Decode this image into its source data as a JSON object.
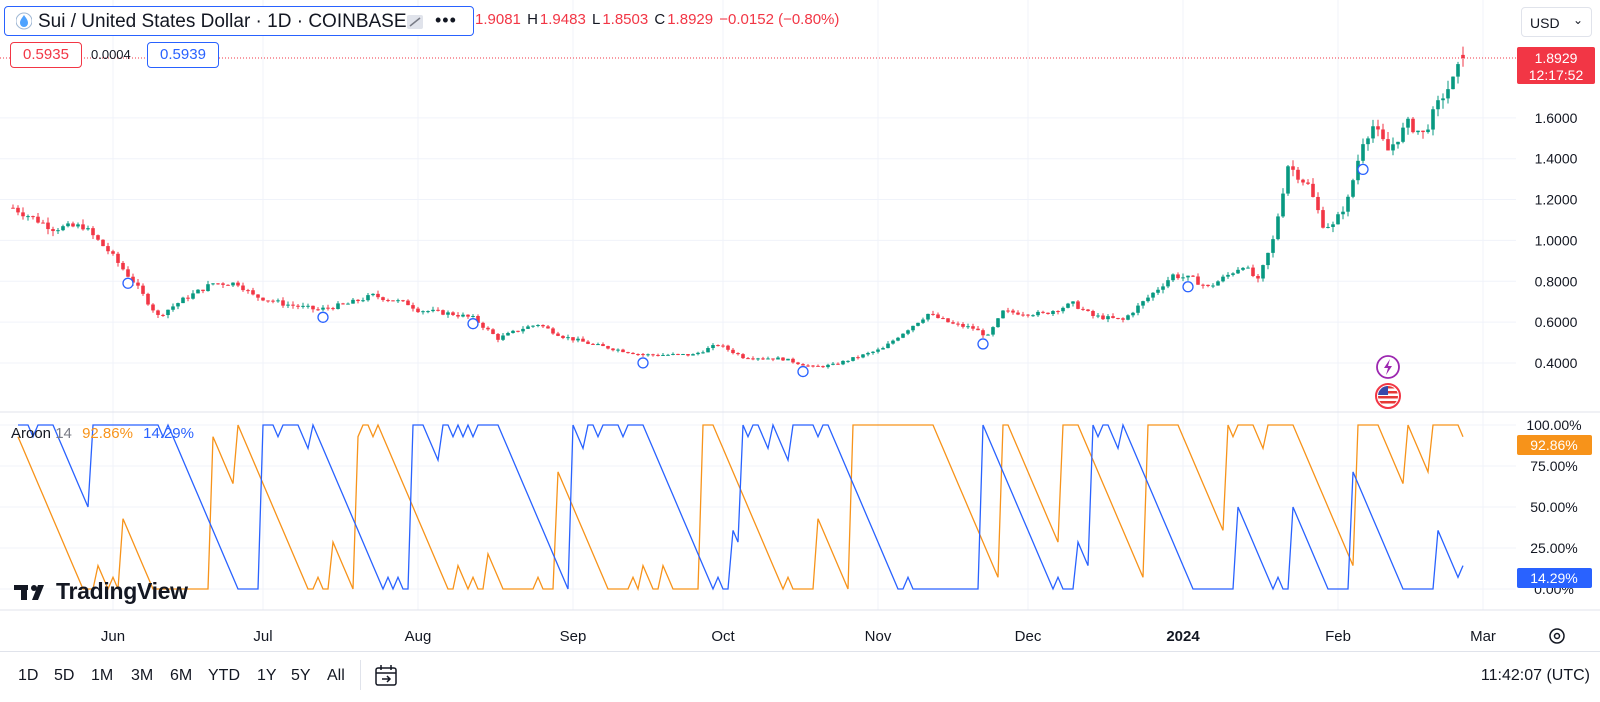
{
  "header": {
    "symbol_title": "Sui / United States Dollar · 1D · COINBASE",
    "symbol_icon": "sui-droplet-icon",
    "more_icon": "more-dots-icon",
    "ohlc": {
      "o_value": "1.9081",
      "h_label": "H",
      "h_value": "1.9483",
      "l_label": "L",
      "l_value": "1.8503",
      "c_label": "C",
      "c_value": "1.8929",
      "change": "−0.0152 (−0.80%)"
    },
    "bid": "0.5935",
    "spread": "0.0004",
    "ask": "0.5939",
    "currency": "USD"
  },
  "price_axis": {
    "ticks": [
      "1.6000",
      "1.4000",
      "1.2000",
      "1.0000",
      "0.8000",
      "0.6000",
      "0.4000"
    ],
    "last_price": "1.8929",
    "countdown": "12:17:52"
  },
  "indicator": {
    "name": "Aroon",
    "length": "14",
    "up_value": "92.86%",
    "down_value": "14.29%",
    "ticks": [
      "100.00%",
      "75.00%",
      "50.00%",
      "25.00%",
      "0.00%"
    ],
    "up_color": "#f7931a",
    "down_color": "#2962ff"
  },
  "time_axis": {
    "labels": [
      "Jun",
      "Jul",
      "Aug",
      "Sep",
      "Oct",
      "Nov",
      "Dec",
      "2024",
      "Feb",
      "Mar"
    ],
    "settings_icon": "gear-icon"
  },
  "bottom_bar": {
    "timeframes": [
      "1D",
      "5D",
      "1M",
      "3M",
      "6M",
      "YTD",
      "1Y",
      "5Y",
      "All"
    ],
    "calendar_icon": "calendar-range-icon",
    "clock": "11:42:07 (UTC)"
  },
  "branding": {
    "logo_text": "TradingView"
  },
  "event_icons": [
    "lightning-icon",
    "us-flag-icon"
  ],
  "colors": {
    "up": "#089981",
    "down": "#f23645",
    "accent": "#2962ff"
  },
  "chart_data": [
    {
      "type": "candlestick",
      "title": "Sui / United States Dollar · 1D · COINBASE",
      "y_scale": "linear",
      "ylim": [
        0.3,
        1.98
      ],
      "y_ticks": [
        0.4,
        0.6,
        0.8,
        1.0,
        1.2,
        1.4,
        1.6
      ],
      "x_ticks": [
        "Jun",
        "Jul",
        "Aug",
        "Sep",
        "Oct",
        "Nov",
        "Dec",
        "2024",
        "Feb",
        "Mar"
      ],
      "grid": true,
      "close_path": [
        [
          "2023-05-12",
          1.16
        ],
        [
          "2023-05-20",
          1.06
        ],
        [
          "2023-05-26",
          1.07
        ],
        [
          "2023-05-31",
          0.95
        ],
        [
          "2023-06-05",
          0.8
        ],
        [
          "2023-06-10",
          0.63
        ],
        [
          "2023-06-15",
          0.71
        ],
        [
          "2023-06-21",
          0.79
        ],
        [
          "2023-06-26",
          0.79
        ],
        [
          "2023-06-29",
          0.73
        ],
        [
          "2023-07-05",
          0.69
        ],
        [
          "2023-07-12",
          0.66
        ],
        [
          "2023-07-18",
          0.69
        ],
        [
          "2023-07-23",
          0.73
        ],
        [
          "2023-07-30",
          0.69
        ],
        [
          "2023-08-01",
          0.66
        ],
        [
          "2023-08-08",
          0.64
        ],
        [
          "2023-08-12",
          0.62
        ],
        [
          "2023-08-17",
          0.52
        ],
        [
          "2023-08-22",
          0.57
        ],
        [
          "2023-08-25",
          0.59
        ],
        [
          "2023-08-30",
          0.53
        ],
        [
          "2023-09-05",
          0.49
        ],
        [
          "2023-09-15",
          0.44
        ],
        [
          "2023-09-25",
          0.44
        ],
        [
          "2023-09-30",
          0.49
        ],
        [
          "2023-10-05",
          0.43
        ],
        [
          "2023-10-13",
          0.42
        ],
        [
          "2023-10-19",
          0.38
        ],
        [
          "2023-10-23",
          0.39
        ],
        [
          "2023-11-02",
          0.47
        ],
        [
          "2023-11-05",
          0.53
        ],
        [
          "2023-11-11",
          0.64
        ],
        [
          "2023-11-16",
          0.59
        ],
        [
          "2023-11-20",
          0.57
        ],
        [
          "2023-11-23",
          0.53
        ],
        [
          "2023-11-26",
          0.65
        ],
        [
          "2023-12-04",
          0.64
        ],
        [
          "2023-12-10",
          0.69
        ],
        [
          "2023-12-14",
          0.63
        ],
        [
          "2023-12-20",
          0.61
        ],
        [
          "2023-12-25",
          0.72
        ],
        [
          "2023-12-30",
          0.83
        ],
        [
          "2024-01-03",
          0.81
        ],
        [
          "2024-01-06",
          0.77
        ],
        [
          "2024-01-10",
          0.83
        ],
        [
          "2024-01-13",
          0.88
        ],
        [
          "2024-01-16",
          0.8
        ],
        [
          "2024-01-19",
          1.0
        ],
        [
          "2024-01-22",
          1.37
        ],
        [
          "2024-01-26",
          1.27
        ],
        [
          "2024-01-29",
          1.08
        ],
        [
          "2024-01-31",
          1.07
        ],
        [
          "2024-02-03",
          1.2
        ],
        [
          "2024-02-06",
          1.49
        ],
        [
          "2024-02-08",
          1.56
        ],
        [
          "2024-02-11",
          1.44
        ],
        [
          "2024-02-15",
          1.57
        ],
        [
          "2024-02-18",
          1.52
        ],
        [
          "2024-02-22",
          1.71
        ],
        [
          "2024-02-24",
          1.78
        ],
        [
          "2024-02-26",
          1.89
        ]
      ],
      "last": {
        "open": 1.9081,
        "high": 1.9483,
        "low": 1.8503,
        "close": 1.8929
      }
    },
    {
      "type": "line",
      "title": "Aroon 14",
      "ylim": [
        0,
        100
      ],
      "y_ticks": [
        0,
        25,
        50,
        75,
        100
      ],
      "series": [
        {
          "name": "Aroon Up",
          "color": "#f7931a",
          "last": 92.86
        },
        {
          "name": "Aroon Down",
          "color": "#2962ff",
          "last": 14.29
        }
      ]
    }
  ]
}
